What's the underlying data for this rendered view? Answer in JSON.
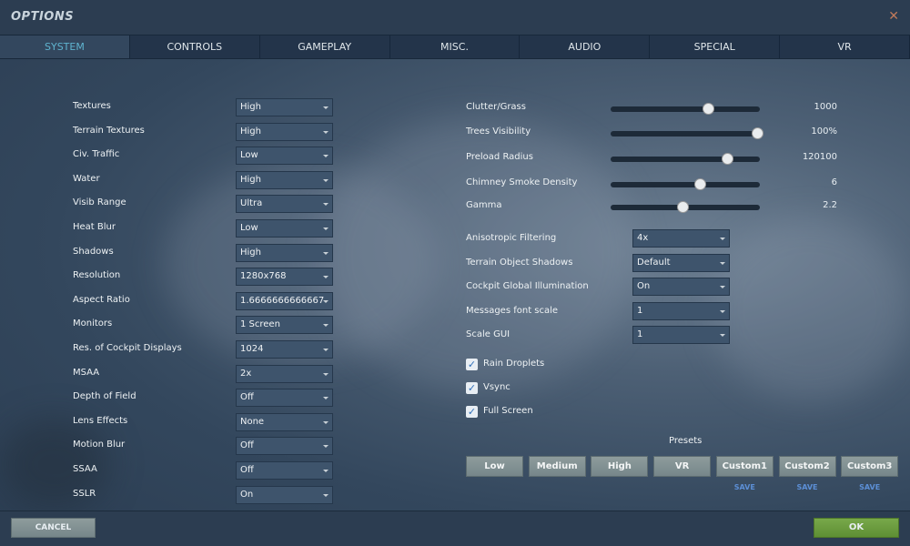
{
  "window": {
    "title": "OPTIONS",
    "close_icon": "close-x"
  },
  "tabs": [
    {
      "label": "SYSTEM",
      "active": true
    },
    {
      "label": "CONTROLS"
    },
    {
      "label": "GAMEPLAY"
    },
    {
      "label": "MISC."
    },
    {
      "label": "AUDIO"
    },
    {
      "label": "SPECIAL"
    },
    {
      "label": "VR"
    }
  ],
  "left_settings": [
    {
      "label": "Textures",
      "value": "High"
    },
    {
      "label": "Terrain Textures",
      "value": "High"
    },
    {
      "label": "Civ. Traffic",
      "value": "Low"
    },
    {
      "label": "Water",
      "value": "High"
    },
    {
      "label": "Visib Range",
      "value": "Ultra"
    },
    {
      "label": "Heat Blur",
      "value": "Low"
    },
    {
      "label": "Shadows",
      "value": "High"
    },
    {
      "label": "Resolution",
      "value": "1280x768"
    },
    {
      "label": "Aspect Ratio",
      "value": "1.6666666666667"
    },
    {
      "label": "Monitors",
      "value": "1 Screen"
    },
    {
      "label": "Res. of Cockpit Displays",
      "value": "1024"
    },
    {
      "label": "MSAA",
      "value": "2x"
    },
    {
      "label": "Depth of Field",
      "value": "Off"
    },
    {
      "label": "Lens Effects",
      "value": "None"
    },
    {
      "label": "Motion Blur",
      "value": "Off"
    },
    {
      "label": "SSAA",
      "value": "Off"
    },
    {
      "label": "SSLR",
      "value": "On"
    }
  ],
  "sliders": [
    {
      "label": "Clutter/Grass",
      "value": "1000",
      "fraction": 0.66
    },
    {
      "label": "Trees Visibility",
      "value": "100%",
      "fraction": 1.0
    },
    {
      "label": "Preload Radius",
      "value": "120100",
      "fraction": 0.79
    },
    {
      "label": "Chimney Smoke Density",
      "value": "6",
      "fraction": 0.6
    },
    {
      "label": "Gamma",
      "value": "2.2",
      "fraction": 0.48
    }
  ],
  "right_settings": [
    {
      "label": "Anisotropic Filtering",
      "value": "4x"
    },
    {
      "label": "Terrain Object Shadows",
      "value": "Default"
    },
    {
      "label": "Cockpit Global Illumination",
      "value": "On"
    },
    {
      "label": "Messages font scale",
      "value": "1"
    },
    {
      "label": "Scale GUI",
      "value": "1"
    }
  ],
  "checkboxes": [
    {
      "label": "Rain Droplets",
      "checked": true
    },
    {
      "label": "Vsync",
      "checked": true
    },
    {
      "label": "Full Screen",
      "checked": true
    }
  ],
  "presets": {
    "title": "Presets",
    "buttons": [
      "Low",
      "Medium",
      "High",
      "VR",
      "Custom1",
      "Custom2",
      "Custom3"
    ],
    "save_label": "SAVE"
  },
  "footer": {
    "cancel": "CANCEL",
    "ok": "OK"
  },
  "colors": {
    "accent": "#5fb3cf",
    "ok": "#6a9a3e",
    "save": "#5c8fd6"
  }
}
